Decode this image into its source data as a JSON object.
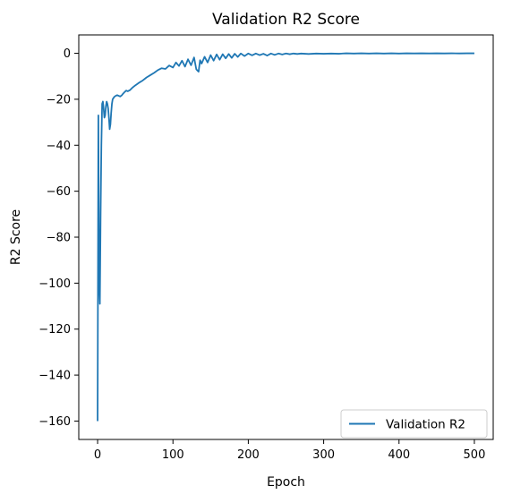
{
  "chart_data": {
    "type": "line",
    "title": "Validation R2 Score",
    "xlabel": "Epoch",
    "ylabel": "R2 Score",
    "xlim": [
      -25,
      525
    ],
    "ylim": [
      -168,
      8
    ],
    "xticks": [
      0,
      100,
      200,
      300,
      400,
      500
    ],
    "yticks": [
      0,
      -20,
      -40,
      -60,
      -80,
      -100,
      -120,
      -140,
      -160
    ],
    "xtick_labels": [
      "0",
      "100",
      "200",
      "300",
      "400",
      "500"
    ],
    "ytick_labels": [
      "0",
      "−20",
      "−40",
      "−60",
      "−80",
      "−100",
      "−120",
      "−140",
      "−160"
    ],
    "grid": false,
    "legend_position": "lower-right",
    "series": [
      {
        "name": "Validation R2",
        "color": "#1f77b4",
        "x": [
          0,
          1,
          2,
          3,
          4,
          5,
          6,
          7,
          8,
          9,
          10,
          11,
          12,
          13,
          14,
          15,
          16,
          17,
          18,
          19,
          20,
          22,
          24,
          26,
          28,
          30,
          32,
          34,
          36,
          38,
          40,
          43,
          46,
          49,
          52,
          55,
          58,
          60,
          65,
          70,
          75,
          80,
          85,
          90,
          95,
          100,
          104,
          108,
          112,
          116,
          120,
          124,
          128,
          131,
          134,
          136,
          138,
          142,
          146,
          150,
          154,
          158,
          162,
          166,
          170,
          174,
          178,
          182,
          186,
          190,
          195,
          200,
          205,
          210,
          215,
          220,
          225,
          230,
          235,
          240,
          245,
          250,
          255,
          260,
          265,
          270,
          280,
          290,
          300,
          310,
          320,
          330,
          340,
          350,
          360,
          370,
          380,
          390,
          400,
          410,
          420,
          430,
          440,
          450,
          460,
          470,
          480,
          490,
          500
        ],
        "y": [
          -160,
          -27,
          -100,
          -109,
          -70,
          -40,
          -22,
          -21,
          -24,
          -28,
          -27,
          -23,
          -21,
          -22,
          -24,
          -28,
          -33,
          -31,
          -26,
          -22,
          -20,
          -19,
          -18.5,
          -18.2,
          -18.5,
          -18.8,
          -18.3,
          -17.5,
          -16.8,
          -16.2,
          -16.5,
          -16,
          -15,
          -14.2,
          -13.5,
          -12.8,
          -12.2,
          -11.8,
          -10.5,
          -9.5,
          -8.5,
          -7.3,
          -6.5,
          -6.8,
          -5.3,
          -6.2,
          -4,
          -5.5,
          -3.2,
          -5.8,
          -2.6,
          -5.2,
          -1.8,
          -7,
          -8,
          -3,
          -4.5,
          -1.5,
          -4,
          -0.8,
          -3.2,
          -0.5,
          -2.8,
          -0.4,
          -2.2,
          -0.3,
          -2,
          -0.2,
          -1.6,
          -0.1,
          -1.2,
          -0.1,
          -0.9,
          -0.1,
          -0.8,
          -0.2,
          -1,
          -0.1,
          -0.7,
          -0.1,
          -0.5,
          -0.1,
          -0.4,
          -0.1,
          -0.3,
          -0.1,
          -0.3,
          -0.1,
          -0.2,
          -0.1,
          -0.2,
          0,
          -0.1,
          0,
          -0.1,
          0,
          -0.1,
          0,
          -0.1,
          0,
          -0.05,
          0,
          -0.05,
          0,
          -0.05,
          0,
          -0.05,
          0,
          0
        ]
      }
    ]
  }
}
